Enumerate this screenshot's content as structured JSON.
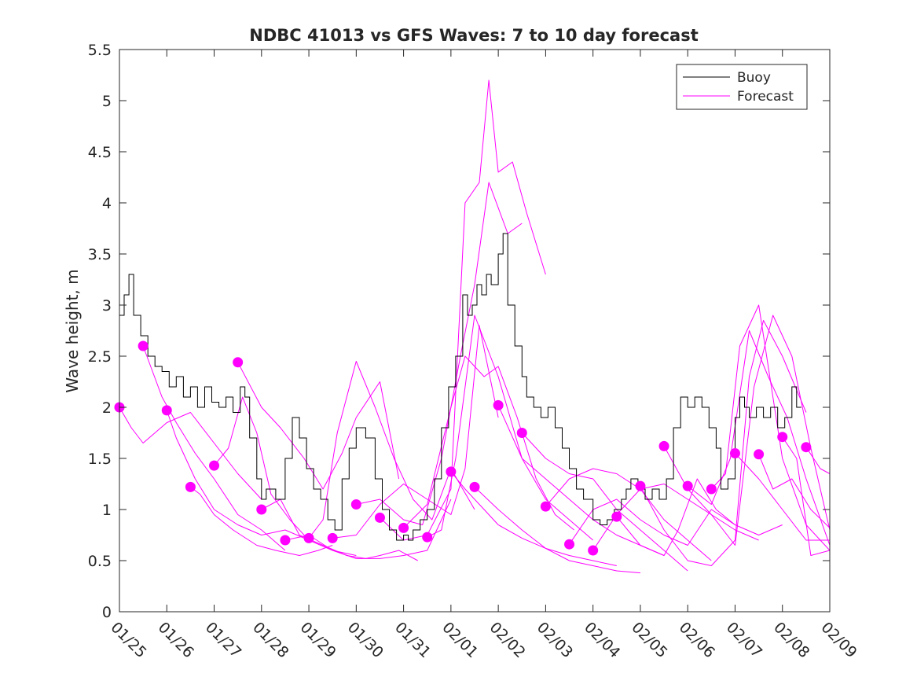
{
  "chart_data": {
    "type": "line",
    "title": "NDBC 41013 vs GFS Waves: 7 to 10 day forecast",
    "xlabel": "",
    "ylabel": "Wave height, m",
    "xlim": [
      0,
      15
    ],
    "ylim": [
      0,
      5.5
    ],
    "yticks": [
      0,
      0.5,
      1,
      1.5,
      2,
      2.5,
      3,
      3.5,
      4,
      4.5,
      5,
      5.5
    ],
    "ytick_labels": [
      "0",
      "0.5",
      "1",
      "1.5",
      "2",
      "2.5",
      "3",
      "3.5",
      "4",
      "4.5",
      "5",
      "5.5"
    ],
    "xticks": [
      0,
      1,
      2,
      3,
      4,
      5,
      6,
      7,
      8,
      9,
      10,
      11,
      12,
      13,
      14,
      15
    ],
    "xtick_labels": [
      "01/25",
      "01/26",
      "01/27",
      "01/28",
      "01/29",
      "01/30",
      "01/31",
      "02/01",
      "02/02",
      "02/03",
      "02/04",
      "02/05",
      "02/06",
      "02/07",
      "02/08",
      "02/09"
    ],
    "legend": {
      "position": "top-right",
      "entries": [
        "Buoy",
        "Forecast"
      ]
    },
    "colors": {
      "buoy": "#000000",
      "forecast": "#ff00ff"
    },
    "buoy": {
      "name": "Buoy",
      "x": [
        0,
        0.1,
        0.2,
        0.3,
        0.45,
        0.6,
        0.75,
        0.9,
        1.05,
        1.2,
        1.35,
        1.5,
        1.65,
        1.8,
        1.95,
        2.1,
        2.25,
        2.4,
        2.55,
        2.65,
        2.75,
        2.9,
        3.0,
        3.1,
        3.3,
        3.5,
        3.65,
        3.8,
        3.95,
        4.1,
        4.25,
        4.4,
        4.55,
        4.7,
        4.85,
        5.0,
        5.2,
        5.4,
        5.55,
        5.7,
        5.85,
        6.0,
        6.1,
        6.2,
        6.35,
        6.5,
        6.65,
        6.8,
        6.95,
        7.1,
        7.25,
        7.35,
        7.45,
        7.55,
        7.65,
        7.75,
        7.85,
        8.0,
        8.1,
        8.2,
        8.35,
        8.5,
        8.6,
        8.75,
        8.9,
        9.05,
        9.2,
        9.35,
        9.5,
        9.65,
        9.8,
        10.0,
        10.15,
        10.3,
        10.45,
        10.6,
        10.7,
        10.8,
        10.95,
        11.1,
        11.25,
        11.4,
        11.55,
        11.7,
        11.85,
        12.0,
        12.15,
        12.3,
        12.45,
        12.6,
        12.7,
        12.85,
        13.0,
        13.1,
        13.2,
        13.3,
        13.45,
        13.6,
        13.75,
        13.9,
        14.05,
        14.2,
        14.3,
        14.4
      ],
      "values": [
        2.9,
        3.1,
        3.3,
        2.9,
        2.7,
        2.5,
        2.4,
        2.35,
        2.2,
        2.3,
        2.1,
        2.2,
        2.0,
        2.2,
        2.05,
        2.0,
        2.1,
        1.95,
        2.2,
        2.1,
        1.7,
        1.3,
        1.1,
        1.2,
        1.1,
        1.5,
        1.9,
        1.7,
        1.4,
        1.2,
        1.1,
        0.9,
        0.8,
        1.3,
        1.6,
        1.8,
        1.7,
        1.3,
        1.0,
        0.8,
        0.7,
        0.75,
        0.7,
        0.8,
        0.9,
        1.0,
        1.3,
        1.8,
        2.2,
        2.5,
        3.1,
        2.9,
        3.0,
        3.2,
        3.1,
        3.3,
        3.2,
        3.5,
        3.7,
        3.0,
        2.6,
        2.3,
        2.1,
        2.0,
        1.9,
        2.0,
        1.8,
        1.6,
        1.4,
        1.2,
        1.1,
        0.9,
        0.85,
        0.9,
        1.0,
        1.1,
        1.2,
        1.3,
        1.2,
        1.1,
        1.2,
        1.1,
        1.3,
        1.8,
        2.1,
        2.0,
        2.1,
        2.0,
        1.8,
        1.6,
        1.2,
        1.3,
        1.9,
        2.1,
        2.0,
        1.9,
        2.0,
        1.9,
        2.0,
        1.8,
        1.9,
        2.2,
        2.0,
        2.0
      ]
    },
    "forecast_series": [
      {
        "name": "Forecast",
        "x": [
          0.0,
          0.25,
          0.5,
          1.0,
          1.5,
          2.0,
          2.5,
          3.0
        ],
        "values": [
          2.0,
          1.8,
          1.65,
          1.85,
          1.95,
          1.65,
          1.35,
          1.1
        ]
      },
      {
        "name": "Forecast",
        "x": [
          0.5,
          0.9,
          1.2,
          1.6,
          2.0,
          2.5,
          3.0,
          3.5
        ],
        "values": [
          2.6,
          2.1,
          1.85,
          1.55,
          1.3,
          0.95,
          0.8,
          0.6
        ]
      },
      {
        "name": "Forecast",
        "x": [
          1.0,
          1.2,
          1.6,
          2.0,
          2.5,
          3.0,
          3.5,
          4.0
        ],
        "values": [
          1.97,
          1.7,
          1.3,
          1.0,
          0.85,
          0.75,
          0.8,
          0.7
        ]
      },
      {
        "name": "Forecast",
        "x": [
          1.5,
          1.7,
          2.0,
          2.4,
          2.9,
          3.3,
          3.8,
          4.2,
          4.5
        ],
        "values": [
          1.22,
          1.15,
          0.95,
          0.8,
          0.65,
          0.6,
          0.55,
          0.6,
          0.65
        ]
      },
      {
        "name": "Forecast",
        "x": [
          2.0,
          2.3,
          2.6,
          2.9,
          3.2,
          3.6,
          4.0,
          4.5,
          5.0
        ],
        "values": [
          1.43,
          1.6,
          2.1,
          1.75,
          1.15,
          0.9,
          0.7,
          0.6,
          0.55
        ]
      },
      {
        "name": "Forecast",
        "x": [
          2.5,
          3.0,
          3.4,
          3.9,
          4.3,
          4.7,
          5.0,
          5.5,
          5.9
        ],
        "values": [
          2.44,
          2.0,
          1.8,
          1.5,
          1.2,
          1.55,
          1.9,
          2.25,
          1.3
        ]
      },
      {
        "name": "Forecast",
        "x": [
          3.0,
          3.4,
          3.8,
          4.3,
          4.8,
          5.2,
          5.5,
          5.9,
          6.3
        ],
        "values": [
          1.0,
          1.1,
          0.75,
          0.65,
          0.55,
          0.52,
          0.55,
          0.6,
          0.5
        ]
      },
      {
        "name": "Forecast",
        "x": [
          3.5,
          4.0,
          4.5,
          5.0,
          5.5,
          6.0,
          6.5,
          7.0
        ],
        "values": [
          0.7,
          0.75,
          0.6,
          0.52,
          0.52,
          0.55,
          0.6,
          1.1
        ]
      },
      {
        "name": "Forecast",
        "x": [
          4.0,
          4.3,
          4.6,
          5.0,
          5.4,
          5.8,
          6.2,
          6.6,
          7.0,
          7.5
        ],
        "values": [
          0.72,
          0.9,
          1.75,
          2.45,
          2.0,
          1.5,
          1.1,
          0.9,
          1.4,
          1.0
        ]
      },
      {
        "name": "Forecast",
        "x": [
          4.5,
          5.0,
          5.5,
          6.0,
          6.5,
          7.0,
          7.3,
          7.6,
          8.0
        ],
        "values": [
          0.72,
          0.75,
          1.05,
          1.25,
          1.1,
          0.95,
          1.4,
          2.8,
          1.9
        ]
      },
      {
        "name": "Forecast",
        "x": [
          5.0,
          5.5,
          6.0,
          6.4,
          6.8,
          7.2,
          7.5,
          7.8,
          8.2,
          8.5
        ],
        "values": [
          1.05,
          1.1,
          0.9,
          0.85,
          1.5,
          2.5,
          3.2,
          4.2,
          3.7,
          3.8
        ]
      },
      {
        "name": "Forecast",
        "x": [
          5.5,
          6.0,
          6.5,
          7.0,
          7.3,
          7.6,
          7.8,
          8.0,
          8.3,
          8.6,
          9.0
        ],
        "values": [
          0.92,
          0.7,
          0.75,
          1.2,
          4.0,
          4.2,
          5.2,
          4.3,
          4.4,
          3.9,
          3.3
        ]
      },
      {
        "name": "Forecast",
        "x": [
          6.0,
          6.5,
          7.0,
          7.3,
          7.7,
          8.0,
          8.4,
          8.8,
          9.2,
          9.6
        ],
        "values": [
          0.82,
          1.05,
          2.0,
          2.5,
          2.3,
          2.4,
          1.9,
          1.3,
          0.95,
          0.8
        ]
      },
      {
        "name": "Forecast",
        "x": [
          6.5,
          6.8,
          7.1,
          7.5,
          8.0,
          8.5,
          9.0,
          9.5,
          10.0
        ],
        "values": [
          0.73,
          0.8,
          1.5,
          2.9,
          2.3,
          1.5,
          1.1,
          0.9,
          0.7
        ]
      },
      {
        "name": "Forecast",
        "x": [
          7.0,
          7.3,
          7.7,
          8.0,
          8.5,
          9.0,
          9.5,
          10.0,
          10.5
        ],
        "values": [
          1.37,
          1.2,
          1.0,
          0.85,
          0.72,
          0.62,
          0.55,
          0.5,
          0.45
        ]
      },
      {
        "name": "Forecast",
        "x": [
          7.5,
          8.0,
          8.5,
          9.0,
          9.5,
          10.0,
          10.5,
          11.0
        ],
        "values": [
          1.22,
          1.0,
          0.8,
          0.62,
          0.5,
          0.45,
          0.4,
          0.38
        ]
      },
      {
        "name": "Forecast",
        "x": [
          8.0,
          8.5,
          9.0,
          9.5,
          10.0,
          10.5,
          11.0,
          11.5
        ],
        "values": [
          2.02,
          1.5,
          1.3,
          1.1,
          0.9,
          0.75,
          0.65,
          0.55
        ]
      },
      {
        "name": "Forecast",
        "x": [
          8.5,
          9.0,
          9.5,
          10.0,
          10.5,
          11.0,
          11.5,
          12.0
        ],
        "values": [
          1.75,
          1.5,
          1.35,
          1.3,
          1.0,
          0.8,
          0.6,
          0.4
        ]
      },
      {
        "name": "Forecast",
        "x": [
          9.0,
          9.5,
          10.0,
          10.5,
          11.0,
          11.5,
          12.0,
          12.5
        ],
        "values": [
          1.03,
          1.3,
          1.4,
          1.35,
          1.2,
          0.9,
          0.7,
          0.5
        ]
      },
      {
        "name": "Forecast",
        "x": [
          9.5,
          10.0,
          10.5,
          11.0,
          11.5,
          12.0,
          12.5,
          13.0
        ],
        "values": [
          0.66,
          1.0,
          1.1,
          0.9,
          0.75,
          0.65,
          1.0,
          0.85
        ]
      },
      {
        "name": "Forecast",
        "x": [
          10.0,
          10.5,
          11.0,
          11.5,
          12.0,
          12.5,
          13.0,
          13.5
        ],
        "values": [
          0.6,
          0.95,
          1.2,
          1.25,
          1.1,
          0.95,
          0.8,
          0.7
        ]
      },
      {
        "name": "Forecast",
        "x": [
          10.5,
          11.0,
          11.5,
          11.8,
          12.2,
          12.6,
          13.0,
          13.5,
          14.0
        ],
        "values": [
          0.93,
          0.65,
          0.55,
          0.8,
          1.3,
          1.0,
          0.85,
          0.75,
          0.85
        ]
      },
      {
        "name": "Forecast",
        "x": [
          11.0,
          11.5,
          12.0,
          12.5,
          13.0,
          13.3,
          13.6,
          14.0,
          14.5
        ],
        "values": [
          1.23,
          0.8,
          0.5,
          0.45,
          0.7,
          2.3,
          2.85,
          2.5,
          1.95
        ]
      },
      {
        "name": "Forecast",
        "x": [
          11.5,
          12.0,
          12.5,
          13.0,
          13.4,
          13.8,
          14.2,
          14.6,
          15.0
        ],
        "values": [
          1.62,
          1.2,
          0.95,
          0.65,
          2.2,
          2.9,
          2.5,
          1.6,
          0.8
        ]
      },
      {
        "name": "Forecast",
        "x": [
          12.0,
          12.5,
          12.9,
          13.3,
          13.7,
          14.1,
          14.5,
          15.0
        ],
        "values": [
          1.23,
          1.05,
          1.5,
          2.75,
          2.3,
          1.9,
          1.3,
          0.65
        ]
      },
      {
        "name": "Forecast",
        "x": [
          12.5,
          12.8,
          13.1,
          13.5,
          14.0,
          14.5,
          15.0
        ],
        "values": [
          1.2,
          1.35,
          2.6,
          3.0,
          1.5,
          0.85,
          0.6
        ]
      },
      {
        "name": "Forecast",
        "x": [
          13.0,
          13.5,
          14.0,
          14.5,
          15.0
        ],
        "values": [
          1.55,
          1.3,
          1.0,
          0.7,
          0.7
        ]
      },
      {
        "name": "Forecast",
        "x": [
          13.5,
          13.8,
          14.2,
          14.6,
          15.0
        ],
        "values": [
          1.54,
          1.2,
          1.3,
          1.0,
          0.82
        ]
      },
      {
        "name": "Forecast",
        "x": [
          14.0,
          14.3,
          14.6,
          15.0
        ],
        "values": [
          1.71,
          1.5,
          0.55,
          0.6
        ]
      },
      {
        "name": "Forecast",
        "x": [
          14.5,
          14.8,
          15.0
        ],
        "values": [
          1.61,
          1.4,
          1.35
        ]
      }
    ],
    "forecast_points": {
      "x": [
        0.0,
        0.5,
        1.0,
        1.5,
        2.0,
        2.5,
        3.0,
        3.5,
        4.0,
        4.5,
        5.0,
        5.5,
        6.0,
        6.5,
        7.0,
        7.5,
        8.0,
        8.5,
        9.0,
        9.5,
        10.0,
        10.5,
        11.0,
        11.5,
        12.0,
        12.5,
        13.0,
        13.5,
        14.0,
        14.5
      ],
      "values": [
        2.0,
        2.6,
        1.97,
        1.22,
        1.43,
        2.44,
        1.0,
        0.7,
        0.72,
        0.72,
        1.05,
        0.92,
        0.82,
        0.73,
        1.37,
        1.22,
        2.02,
        1.75,
        1.03,
        0.66,
        0.6,
        0.93,
        1.23,
        1.62,
        1.23,
        1.2,
        1.55,
        1.54,
        1.71,
        1.61
      ]
    }
  }
}
